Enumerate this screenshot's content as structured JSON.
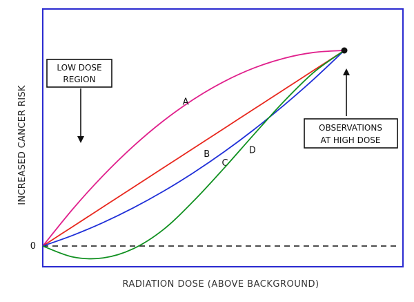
{
  "chart_data": {
    "type": "line",
    "xlabel": "RADIATION DOSE (ABOVE BACKGROUND)",
    "ylabel": "INCREASED CANCER RISK",
    "y_tick_labels": [
      "0"
    ],
    "xlim": [
      0,
      1
    ],
    "ylim": [
      -0.08,
      1.08
    ],
    "grid": false,
    "zero_line_style": "dashed",
    "high_dose_point": {
      "x": 1.0,
      "y": 1.0
    },
    "series": [
      {
        "name": "A",
        "color": "#e0208c",
        "x": [
          0,
          0.1,
          0.2,
          0.3,
          0.4,
          0.5,
          0.6,
          0.7,
          0.8,
          0.9,
          1.0
        ],
        "y": [
          0,
          0.19,
          0.36,
          0.51,
          0.64,
          0.75,
          0.84,
          0.91,
          0.96,
          0.99,
          1.0
        ]
      },
      {
        "name": "B",
        "color": "#e8281e",
        "x": [
          0,
          0.1,
          0.2,
          0.3,
          0.4,
          0.5,
          0.6,
          0.7,
          0.8,
          0.9,
          1.0
        ],
        "y": [
          0,
          0.1,
          0.2,
          0.3,
          0.4,
          0.5,
          0.6,
          0.7,
          0.8,
          0.9,
          1.0
        ]
      },
      {
        "name": "C",
        "color": "#2030d8",
        "x": [
          0,
          0.1,
          0.2,
          0.3,
          0.4,
          0.5,
          0.6,
          0.7,
          0.8,
          0.9,
          1.0
        ],
        "y": [
          0,
          0.055,
          0.12,
          0.195,
          0.28,
          0.375,
          0.48,
          0.595,
          0.72,
          0.855,
          1.0
        ]
      },
      {
        "name": "D",
        "color": "#109020",
        "x": [
          0,
          0.1,
          0.2,
          0.3,
          0.4,
          0.5,
          0.6,
          0.7,
          0.8,
          0.9,
          1.0
        ],
        "y": [
          0,
          -0.056,
          -0.061,
          -0.014,
          0.084,
          0.23,
          0.396,
          0.57,
          0.74,
          0.89,
          1.0
        ]
      }
    ],
    "annotations": [
      {
        "id": "low_dose",
        "lines": [
          "LOW DOSE",
          "REGION"
        ]
      },
      {
        "id": "high_dose",
        "lines": [
          "OBSERVATIONS",
          "AT HIGH DOSE"
        ]
      }
    ]
  }
}
